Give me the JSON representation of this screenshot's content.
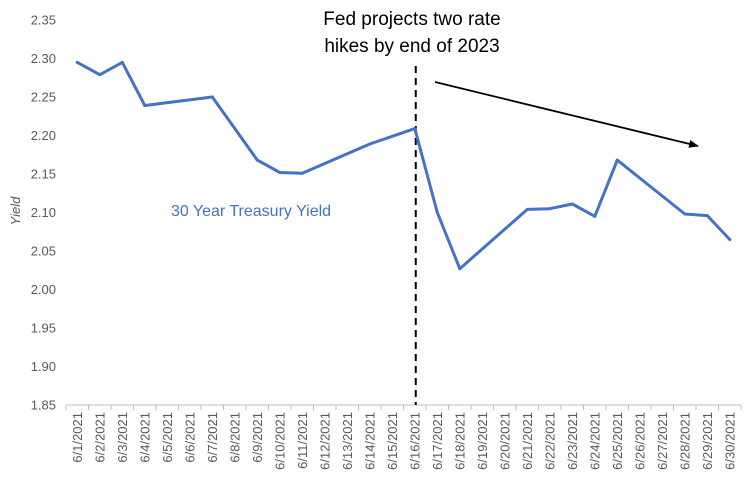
{
  "chart_data": {
    "type": "line",
    "title": "",
    "xlabel": "",
    "ylabel": "Yield",
    "ylim": [
      1.85,
      2.35
    ],
    "yticks": [
      "2.35",
      "2.30",
      "2.25",
      "2.20",
      "2.15",
      "2.10",
      "2.05",
      "2.00",
      "1.95",
      "1.90",
      "1.85"
    ],
    "grid": false,
    "legend": "none",
    "categories": [
      "6/1/2021",
      "6/2/2021",
      "6/3/2021",
      "6/4/2021",
      "6/5/2021",
      "6/6/2021",
      "6/7/2021",
      "6/8/2021",
      "6/9/2021",
      "6/10/2021",
      "6/11/2021",
      "6/12/2021",
      "6/13/2021",
      "6/14/2021",
      "6/15/2021",
      "6/16/2021",
      "6/17/2021",
      "6/18/2021",
      "6/19/2021",
      "6/20/2021",
      "6/21/2021",
      "6/22/2021",
      "6/23/2021",
      "6/24/2021",
      "6/25/2021",
      "6/26/2021",
      "6/27/2021",
      "6/28/2021",
      "6/29/2021",
      "6/30/2021"
    ],
    "series": [
      {
        "name": "30 Year Treasury Yield",
        "color": "#4472C4",
        "values": [
          2.295,
          2.279,
          2.295,
          2.239,
          null,
          null,
          2.25,
          null,
          2.168,
          2.152,
          2.151,
          null,
          null,
          2.189,
          null,
          2.209,
          2.1,
          2.027,
          null,
          null,
          2.104,
          2.105,
          2.111,
          2.095,
          2.168,
          null,
          null,
          2.098,
          2.096,
          2.065
        ]
      }
    ],
    "annotations": {
      "event_date": "6/16/2021",
      "event_text_line1": "Fed projects two rate",
      "event_text_line2": "hikes by end of 2023",
      "series_label": "30 Year Treasury Yield"
    }
  }
}
